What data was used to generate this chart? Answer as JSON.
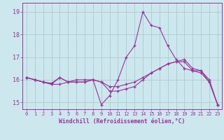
{
  "xlabel": "Windchill (Refroidissement éolien,°C)",
  "background_color": "#cce8ee",
  "grid_color": "#aacccc",
  "line_color": "#993399",
  "xlim": [
    -0.5,
    23.5
  ],
  "ylim": [
    14.7,
    19.4
  ],
  "yticks": [
    15,
    16,
    17,
    18,
    19
  ],
  "xticks": [
    0,
    1,
    2,
    3,
    4,
    5,
    6,
    7,
    8,
    9,
    10,
    11,
    12,
    13,
    14,
    15,
    16,
    17,
    18,
    19,
    20,
    21,
    22,
    23
  ],
  "series": [
    [
      16.1,
      16.0,
      15.9,
      15.8,
      15.8,
      15.9,
      16.0,
      16.0,
      16.0,
      14.9,
      15.3,
      16.0,
      17.0,
      17.5,
      19.0,
      18.4,
      18.3,
      17.5,
      16.9,
      16.5,
      16.4,
      16.4,
      16.0,
      14.9
    ],
    [
      16.1,
      16.0,
      15.9,
      15.85,
      16.1,
      15.9,
      15.9,
      15.9,
      16.0,
      15.9,
      15.7,
      15.7,
      15.8,
      15.9,
      16.1,
      16.3,
      16.5,
      16.7,
      16.8,
      16.9,
      16.5,
      16.4,
      15.9,
      14.9
    ],
    [
      16.1,
      16.0,
      15.9,
      15.8,
      16.1,
      15.9,
      15.9,
      15.9,
      16.0,
      15.9,
      15.5,
      15.5,
      15.6,
      15.7,
      16.0,
      16.3,
      16.5,
      16.7,
      16.8,
      16.8,
      16.4,
      16.3,
      15.9,
      14.9
    ]
  ]
}
